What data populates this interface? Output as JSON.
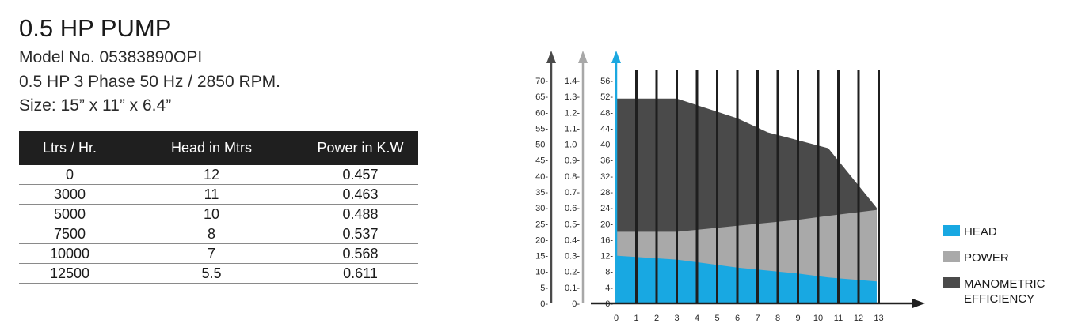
{
  "header": {
    "title": "0.5 HP PUMP",
    "model": "Model No. 05383890OPI",
    "spec_line": "0.5 HP 3 Phase 50 Hz / 2850 RPM.",
    "size": "Size: 15” x 11” x 6.4”"
  },
  "table": {
    "headers": [
      "Ltrs / Hr.",
      "Head in Mtrs",
      "Power in K.W"
    ],
    "rows": [
      [
        "0",
        "12",
        "0.457"
      ],
      [
        "3000",
        "11",
        "0.463"
      ],
      [
        "5000",
        "10",
        "0.488"
      ],
      [
        "7500",
        "8",
        "0.537"
      ],
      [
        "10000",
        "7",
        "0.568"
      ],
      [
        "12500",
        "5.5",
        "0.611"
      ]
    ]
  },
  "chart_data": {
    "type": "area",
    "x": [
      0,
      1,
      2,
      3,
      4,
      5,
      6,
      7,
      8,
      9,
      10,
      11,
      12,
      13
    ],
    "x_ticks": [
      "0",
      "1",
      "2",
      "3",
      "4",
      "5",
      "6",
      "7",
      "8",
      "9",
      "10",
      "11",
      "12",
      "13"
    ],
    "x_data_range": [
      0,
      12.9
    ],
    "axes": [
      {
        "ticks": [
          "0-",
          "5-",
          "10-",
          "15-",
          "20-",
          "25-",
          "30-",
          "35-",
          "40-",
          "45-",
          "50-",
          "55-",
          "60-",
          "65-",
          "70-"
        ],
        "range": [
          0,
          70
        ],
        "color": "#4a4a4a"
      },
      {
        "ticks": [
          "0-",
          "0.1-",
          "0.2-",
          "0.3-",
          "0.4-",
          "0.5-",
          "0.6-",
          "0.7-",
          "0.8-",
          "0.9-",
          "1.0-",
          "1.1-",
          "1.2-",
          "1.3-",
          "1.4-"
        ],
        "range": [
          0,
          1.4
        ],
        "color": "#a8a8a8"
      },
      {
        "ticks": [
          "0-",
          "4-",
          "8-",
          "12-",
          "16-",
          "20-",
          "24-",
          "28-",
          "32-",
          "36-",
          "40-",
          "44-",
          "48-",
          "52-",
          "56-"
        ],
        "range": [
          0,
          56
        ],
        "color": "#1ba8e0"
      }
    ],
    "series": [
      {
        "name": "HEAD",
        "color": "#18a8e2",
        "points": [
          [
            0,
            12
          ],
          [
            3,
            11
          ],
          [
            6,
            9
          ],
          [
            9,
            7.5
          ],
          [
            10.5,
            6.5
          ],
          [
            12.9,
            5.5
          ]
        ]
      },
      {
        "name": "POWER",
        "color": "#a9a9a9",
        "points": [
          [
            0,
            18
          ],
          [
            3,
            18
          ],
          [
            6,
            19.5
          ],
          [
            9,
            21
          ],
          [
            10.5,
            22
          ],
          [
            12.9,
            23.5
          ]
        ]
      },
      {
        "name": "MANOMETRIC EFFICIENCY",
        "color": "#4a4a4a",
        "points": [
          [
            0,
            51.5
          ],
          [
            3,
            51.5
          ],
          [
            6,
            46.5
          ],
          [
            7.5,
            43
          ],
          [
            10.5,
            39
          ],
          [
            12.9,
            24
          ]
        ]
      }
    ],
    "legend": {
      "position": "right",
      "items": [
        {
          "label": "HEAD",
          "color": "#18a8e2"
        },
        {
          "label": "POWER",
          "color": "#a9a9a9"
        },
        {
          "label": "MANOMETRIC EFFICIENCY",
          "color": "#4a4a4a"
        }
      ]
    },
    "grid": "vertical"
  }
}
